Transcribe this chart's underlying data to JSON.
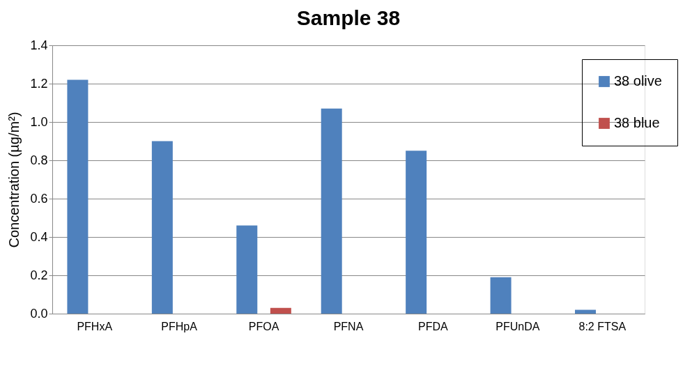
{
  "chart_data": {
    "type": "bar",
    "title": "Sample 38",
    "ylabel": "Concentration (µg/m²)",
    "categories": [
      "PFHxA",
      "PFHpA",
      "PFOA",
      "PFNA",
      "PFDA",
      "PFUnDA",
      "8:2 FTSA"
    ],
    "series": [
      {
        "name": "38 olive",
        "color": "#4f81bd",
        "values": [
          1.22,
          0.9,
          0.46,
          1.07,
          0.85,
          0.19,
          0.02
        ]
      },
      {
        "name": "38 blue",
        "color": "#c0504d",
        "values": [
          null,
          null,
          0.03,
          null,
          null,
          null,
          null
        ]
      }
    ],
    "ylim": [
      0,
      1.4
    ],
    "yticks": [
      {
        "value": 0,
        "label": "0.0"
      },
      {
        "value": 0.2,
        "label": "0.2"
      },
      {
        "value": 0.4,
        "label": "0.4"
      },
      {
        "value": 0.6,
        "label": "0.6"
      },
      {
        "value": 0.8,
        "label": "0.8"
      },
      {
        "value": 1,
        "label": "1.0"
      },
      {
        "value": 1.2,
        "label": "1.2"
      },
      {
        "value": 1.4,
        "label": "1.4"
      }
    ],
    "grid": "y",
    "legend": "top right"
  }
}
